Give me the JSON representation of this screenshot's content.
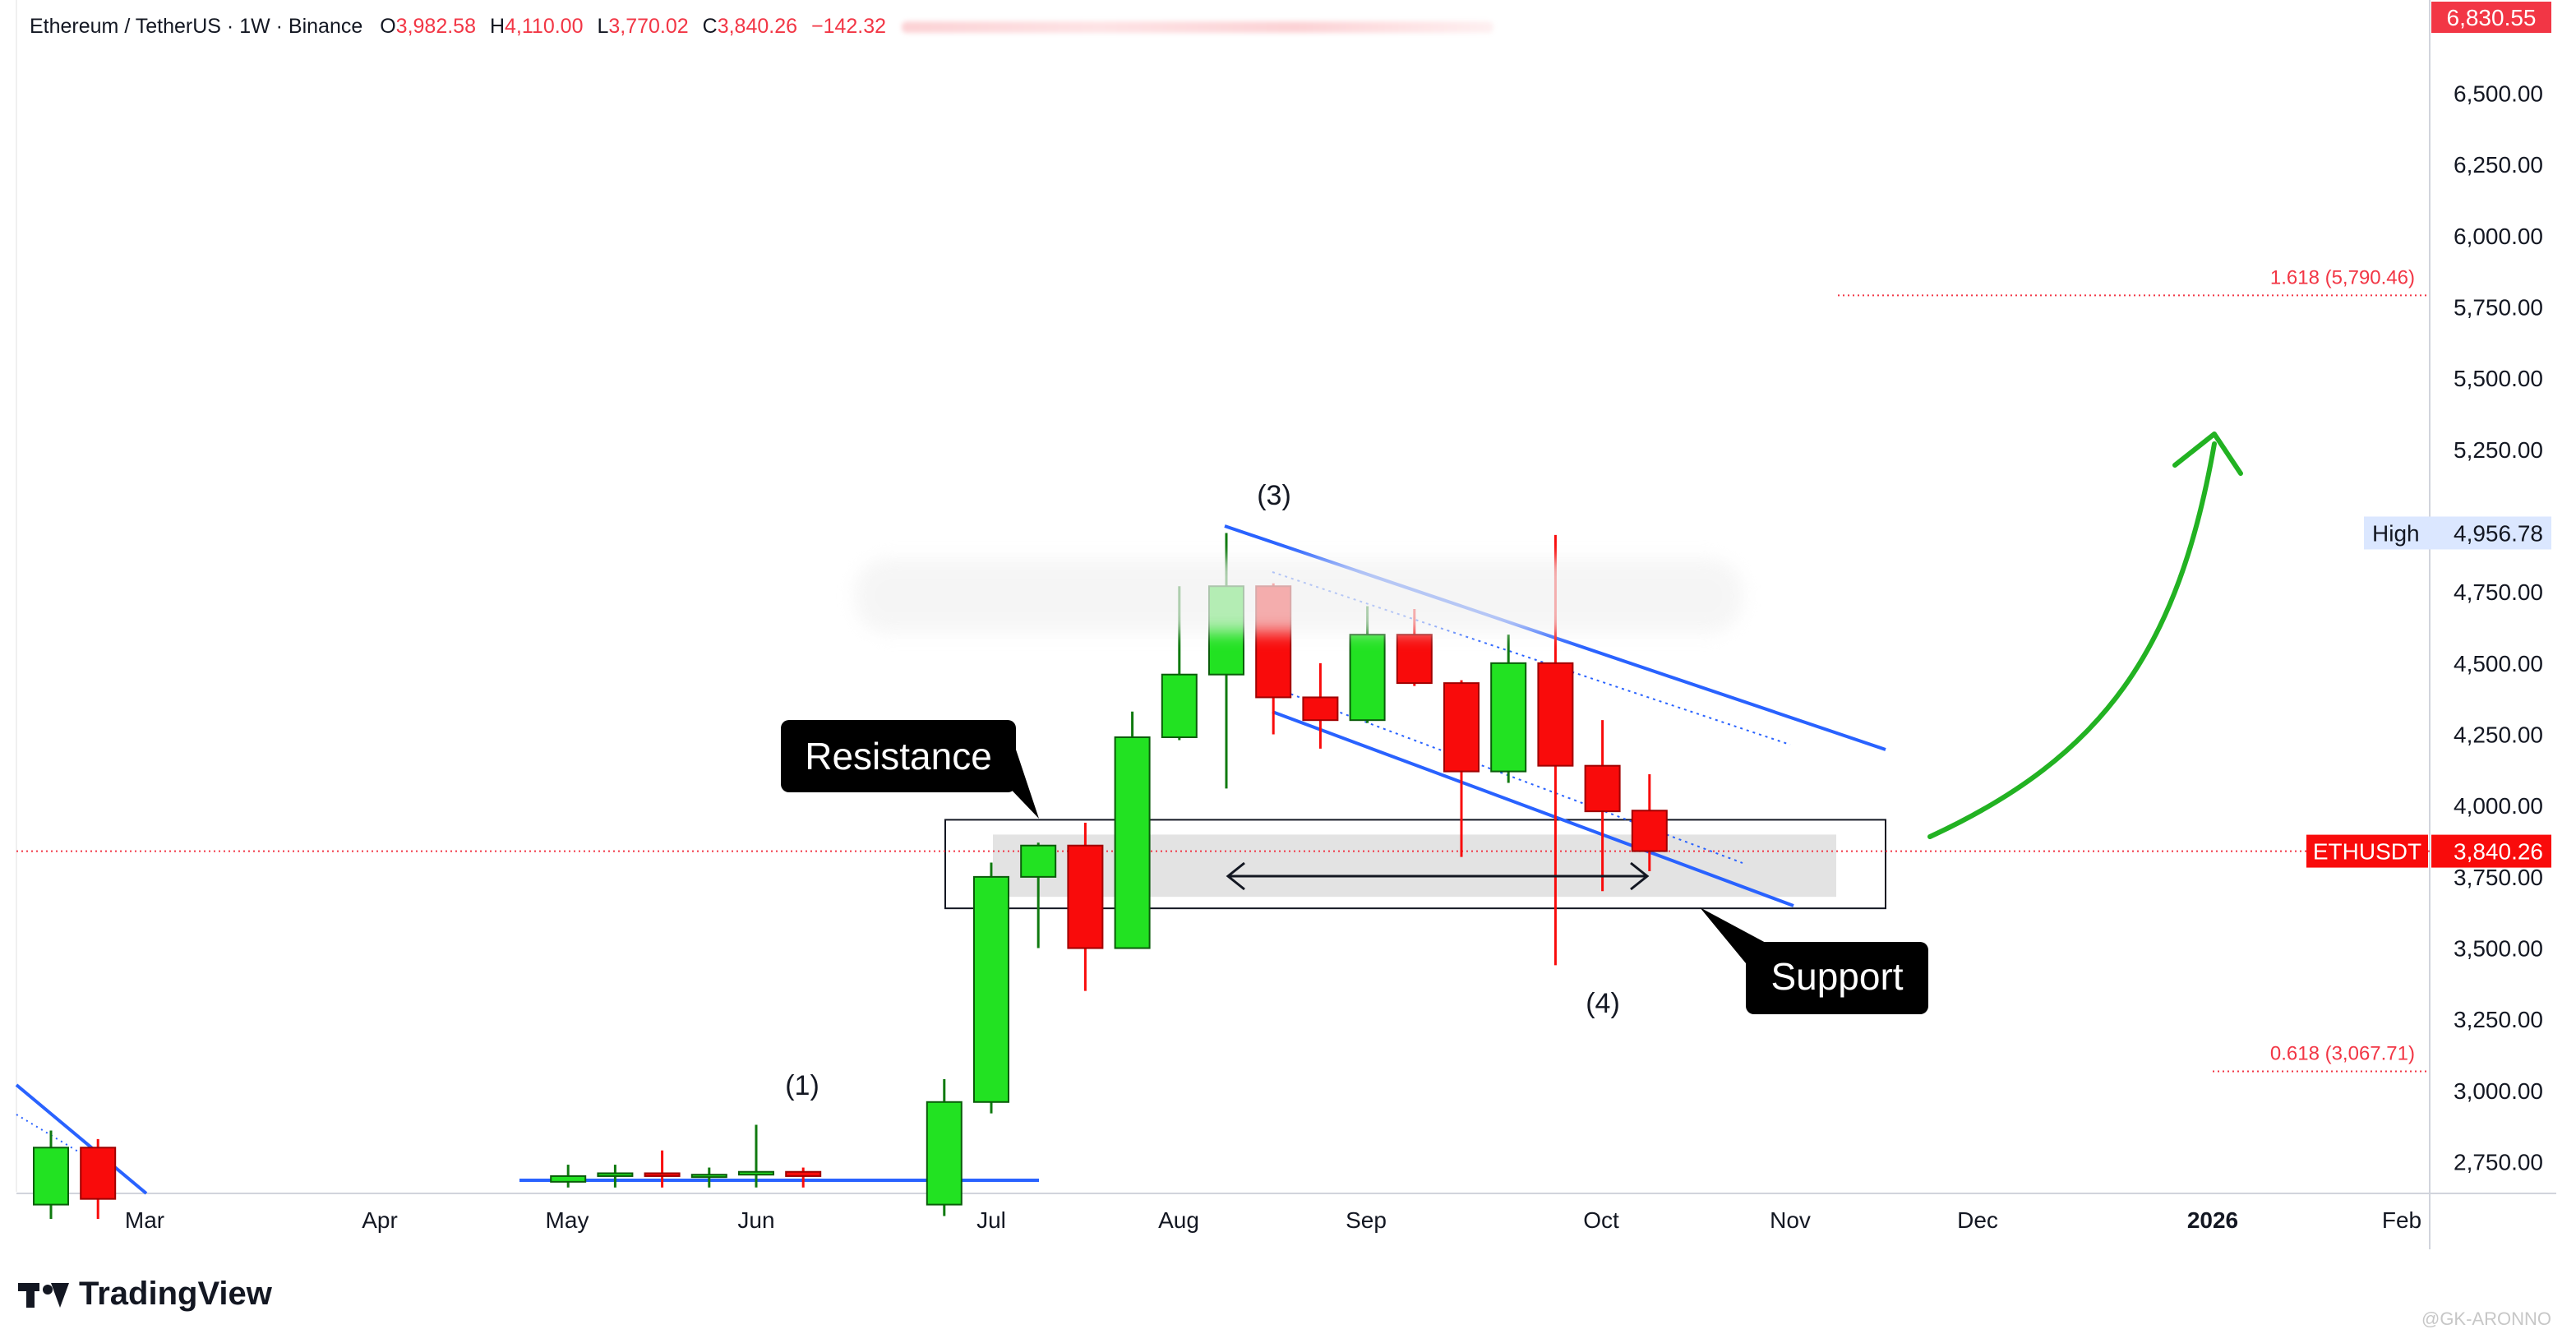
{
  "header": {
    "symbol": "Ethereum / TetherUS · 1W · Binance",
    "open_label": "O",
    "open": "3,982.58",
    "high_label": "H",
    "high": "4,110.00",
    "low_label": "L",
    "low": "3,770.02",
    "close_label": "C",
    "close": "3,840.26",
    "change": "−142.32"
  },
  "price_axis": {
    "ticks": [
      "6,500.00",
      "6,250.00",
      "6,000.00",
      "5,750.00",
      "5,500.00",
      "5,250.00",
      "4,750.00",
      "4,500.00",
      "4,250.00",
      "4,000.00",
      "3,750.00",
      "3,500.00",
      "3,250.00",
      "3,000.00",
      "2,750.00"
    ],
    "top_badge": "6,830.55",
    "high_label": "High",
    "high_value": "4,956.78",
    "symbol_badge": "ETHUSDT",
    "last_price": "3,840.26"
  },
  "time_axis": {
    "labels": [
      "Mar",
      "Apr",
      "May",
      "Jun",
      "Jul",
      "Aug",
      "Sep",
      "Oct",
      "Nov",
      "Dec",
      "2026",
      "Feb"
    ]
  },
  "annotations": {
    "wave_1": "(1)",
    "wave_3": "(3)",
    "wave_4": "(4)",
    "resistance": "Resistance",
    "support": "Support",
    "fib_upper": "1.618 (5,790.46)",
    "fib_lower": "0.618 (3,067.71)"
  },
  "branding": {
    "name": "TradingView",
    "watermark": "@GK-ARONNO"
  },
  "colors": {
    "up": "#22e222",
    "down": "#f90b0b",
    "channel": "#2962ff",
    "arrow": "#22b222",
    "price_line": "#f23645",
    "fib": "#f23645"
  },
  "chart_data": {
    "type": "candlestick",
    "timeframe": "1W",
    "ylim": [
      2650,
      6900
    ],
    "series": [
      {
        "date": "2025-02-17",
        "open": 2600,
        "high": 2860,
        "low": 2550,
        "close": 2800
      },
      {
        "date": "2025-02-24",
        "open": 2800,
        "high": 2830,
        "low": 2550,
        "close": 2620
      },
      {
        "date": "2025-05-05",
        "open": 2680,
        "high": 2740,
        "low": 2660,
        "close": 2700
      },
      {
        "date": "2025-05-12",
        "open": 2700,
        "high": 2740,
        "low": 2660,
        "close": 2710
      },
      {
        "date": "2025-05-19",
        "open": 2710,
        "high": 2790,
        "low": 2660,
        "close": 2700
      },
      {
        "date": "2025-05-26",
        "open": 2700,
        "high": 2730,
        "low": 2660,
        "close": 2705
      },
      {
        "date": "2025-06-02",
        "open": 2705,
        "high": 2880,
        "low": 2660,
        "close": 2715
      },
      {
        "date": "2025-06-09",
        "open": 2715,
        "high": 2730,
        "low": 2660,
        "close": 2700
      },
      {
        "date": "2025-06-30",
        "open": 2600,
        "high": 3040,
        "low": 2560,
        "close": 2960
      },
      {
        "date": "2025-07-07",
        "open": 2960,
        "high": 3800,
        "low": 2920,
        "close": 3750
      },
      {
        "date": "2025-07-14",
        "open": 3750,
        "high": 3870,
        "low": 3500,
        "close": 3860
      },
      {
        "date": "2025-07-21",
        "open": 3860,
        "high": 3940,
        "low": 3350,
        "close": 3500
      },
      {
        "date": "2025-07-28",
        "open": 3500,
        "high": 4330,
        "low": 3500,
        "close": 4240
      },
      {
        "date": "2025-08-04",
        "open": 4240,
        "high": 4770,
        "low": 4230,
        "close": 4460
      },
      {
        "date": "2025-08-11",
        "open": 4460,
        "high": 4956.78,
        "low": 4060,
        "close": 4770
      },
      {
        "date": "2025-08-18",
        "open": 4770,
        "high": 4780,
        "low": 4250,
        "close": 4380
      },
      {
        "date": "2025-08-25",
        "open": 4380,
        "high": 4500,
        "low": 4200,
        "close": 4300
      },
      {
        "date": "2025-09-01",
        "open": 4300,
        "high": 4700,
        "low": 4290,
        "close": 4600
      },
      {
        "date": "2025-09-08",
        "open": 4600,
        "high": 4690,
        "low": 4420,
        "close": 4430
      },
      {
        "date": "2025-09-15",
        "open": 4430,
        "high": 4440,
        "low": 3820,
        "close": 4120
      },
      {
        "date": "2025-09-22",
        "open": 4120,
        "high": 4600,
        "low": 4080,
        "close": 4500
      },
      {
        "date": "2025-09-29",
        "open": 4500,
        "high": 4950,
        "low": 3440,
        "close": 4140
      },
      {
        "date": "2025-10-06",
        "open": 4140,
        "high": 4300,
        "low": 3700,
        "close": 3980
      },
      {
        "date": "2025-10-13",
        "open": 3982.58,
        "high": 4110,
        "low": 3770.02,
        "close": 3840.26
      }
    ],
    "fib_levels": [
      {
        "ratio": 1.618,
        "price": 5790.46
      },
      {
        "ratio": 0.618,
        "price": 3067.71
      }
    ],
    "support_resistance_zone": [
      3680,
      3910
    ],
    "grid": false
  }
}
